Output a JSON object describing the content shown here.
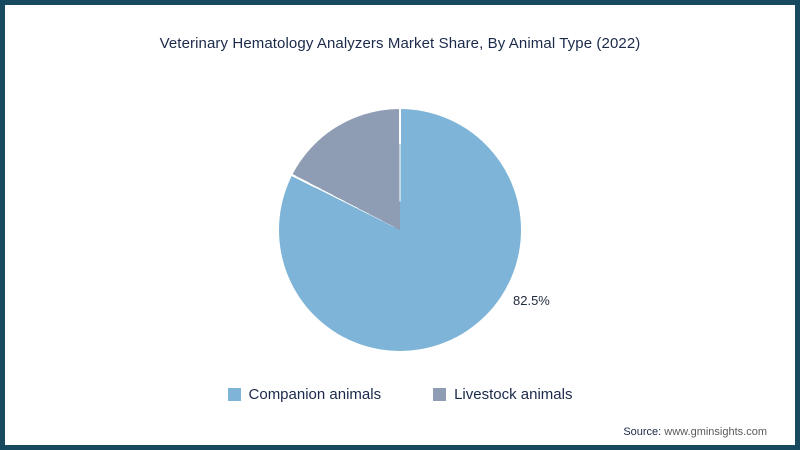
{
  "page": {
    "source_label": "Source:",
    "source_value": "www.gminsights.com"
  },
  "chart_data": {
    "type": "pie",
    "title": "Veterinary Hematology Analyzers Market Share, By Animal Type (2022)",
    "labels": [
      "Companion animals",
      "Livestock animals"
    ],
    "values": [
      82.5,
      17.5
    ],
    "colors": [
      "#7db4d7",
      "#8e9cb4"
    ],
    "data_labels": [
      "82.5%",
      ""
    ],
    "start_angle_deg": 0,
    "direction": "clockwise",
    "legend_position": "bottom",
    "slice_border_color": "#ffffff"
  }
}
